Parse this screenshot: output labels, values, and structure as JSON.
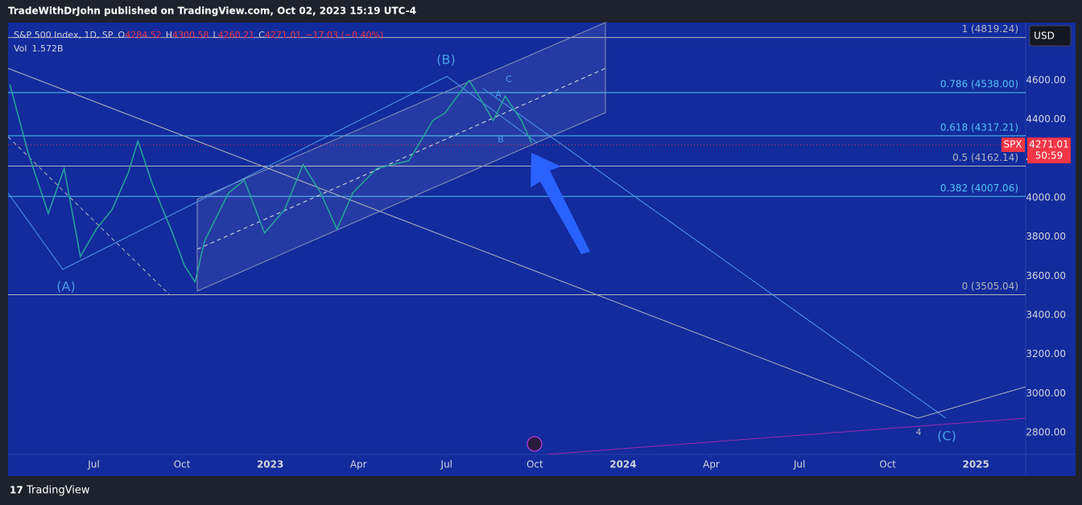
{
  "header": {
    "title": "TradeWithDrJohn published on TradingView.com, Oct 02, 2023 15:19 UTC-4"
  },
  "legend": {
    "symbol": "S&P 500 Index, 1D, SP",
    "ohlc": [
      {
        "label": "O",
        "value": 4284.52
      },
      {
        "label": "H",
        "value": 4300.58
      },
      {
        "label": "L",
        "value": 4260.21
      },
      {
        "label": "C",
        "value": 4271.01
      }
    ],
    "change": "−17.03 (−0.40%)",
    "volume_label": "Vol",
    "volume": "1.572B"
  },
  "currency": "USD",
  "chart_data": {
    "type": "line",
    "color": "#26a69a",
    "x": [
      2022.262,
      2022.314,
      2022.371,
      2022.416,
      2022.462,
      2022.507,
      2022.552,
      2022.598,
      2022.625,
      2022.666,
      2022.723,
      2022.757,
      2022.787,
      2022.814,
      2022.882,
      2022.927,
      2022.984,
      2023.041,
      2023.093,
      2023.143,
      2023.189,
      2023.234,
      2023.302,
      2023.393,
      2023.461,
      2023.496,
      2023.564,
      2023.598,
      2023.632,
      2023.666,
      2023.712,
      2023.741
    ],
    "values": [
      4580,
      4230,
      3920,
      4150,
      3700,
      3840,
      3940,
      4130,
      4290,
      4070,
      3820,
      3655,
      3570,
      3780,
      4025,
      4090,
      3820,
      3940,
      4170,
      4025,
      3840,
      4025,
      4150,
      4190,
      4395,
      4435,
      4600,
      4500,
      4395,
      4520,
      4395,
      4280
    ],
    "xlim": [
      2022.257,
      2025.141
    ],
    "xticks": [
      {
        "value": 2022.5,
        "label": "Jul"
      },
      {
        "value": 2022.75,
        "label": "Oct"
      },
      2023,
      {
        "value": 2023.25,
        "label": "Apr"
      },
      {
        "value": 2023.5,
        "label": "Jul"
      },
      {
        "value": 2023.75,
        "label": "Oct"
      },
      2024,
      {
        "value": 2024.25,
        "label": "Apr"
      },
      {
        "value": 2024.5,
        "label": "Jul"
      },
      {
        "value": 2024.75,
        "label": "Oct"
      },
      2025
    ],
    "ylim": [
      2689,
      4896
    ],
    "yticks": [
      {
        "value": 2800,
        "label": "2800.00"
      },
      {
        "value": 3000,
        "label": "3000.00"
      },
      {
        "value": 3200,
        "label": "3200.00"
      },
      {
        "value": 3400,
        "label": "3400.00"
      },
      {
        "value": 3600,
        "label": "3600.00"
      },
      {
        "value": 3800,
        "label": "3800.00"
      },
      {
        "value": 4000,
        "label": "4000.00"
      },
      {
        "value": 4200,
        "label": "4200.00"
      },
      {
        "value": 4400,
        "label": "4400.00"
      },
      {
        "value": 4600,
        "label": "4600.00"
      }
    ],
    "fib_levels": [
      {
        "label": "1 (4819.24)",
        "value": 4819.24,
        "color": "#b2b5be"
      },
      {
        "label": "0.786 (4538.00)",
        "value": 4538,
        "color": "#4fc3f7"
      },
      {
        "label": "0.618 (4317.21)",
        "value": 4317.21,
        "color": "#4fc3f7"
      },
      {
        "label": "0.5 (4162.14)",
        "value": 4162.14,
        "color": "#b2b5be"
      },
      {
        "label": "0.382 (4007.06)",
        "value": 4007.06,
        "color": "#4fc3f7"
      },
      {
        "label": "0 (3505.04)",
        "value": 3505.04,
        "color": "#b2b5be"
      }
    ],
    "wave_labels": [
      "(A)",
      "(B)",
      "(C)",
      "A",
      "B",
      "C",
      "4"
    ],
    "last_price": {
      "symbol": "SPX",
      "value": 4271.01,
      "countdown": "50:59"
    }
  },
  "footer": {
    "brand": "TradingView"
  }
}
